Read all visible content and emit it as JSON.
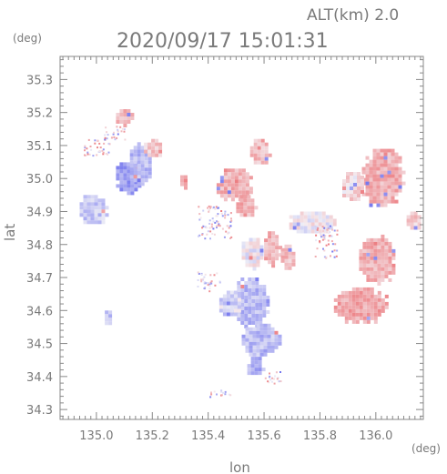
{
  "chart_data": {
    "type": "heatmap",
    "title": "2020/09/17 15:01:31",
    "altitude_label": "ALT(km) 2.0",
    "xlabel": "lon",
    "ylabel": "lat",
    "xunit": "(deg)",
    "yunit": "(deg)",
    "xlim": [
      134.87,
      136.17
    ],
    "ylim": [
      34.27,
      35.37
    ],
    "xticks": [
      135.0,
      135.2,
      135.4,
      135.6,
      135.8,
      136.0
    ],
    "xtick_labels": [
      "135.0",
      "135.2",
      "135.4",
      "135.6",
      "135.8",
      "136.0"
    ],
    "yticks": [
      34.3,
      34.4,
      34.5,
      34.6,
      34.7,
      34.8,
      34.9,
      35.0,
      35.1,
      35.2,
      35.3
    ],
    "ytick_labels": [
      "34.3",
      "34.4",
      "34.5",
      "34.6",
      "34.7",
      "34.8",
      "34.9",
      "35.0",
      "35.1",
      "35.2",
      "35.3"
    ],
    "minor_step": 0.02,
    "grid": false,
    "colors": {
      "positive": "#f08080",
      "negative": "#8080f0",
      "near_zero": "#f4e8ec"
    },
    "regions": [
      {
        "lon": [
          134.94,
          135.04
        ],
        "lat": [
          34.86,
          34.95
        ],
        "level": -0.3
      },
      {
        "lon": [
          135.03,
          135.06
        ],
        "lat": [
          34.55,
          34.6
        ],
        "level": -0.3
      },
      {
        "lon": [
          135.07,
          135.16
        ],
        "lat": [
          34.95,
          35.06
        ],
        "level": -0.7
      },
      {
        "lon": [
          135.12,
          135.2
        ],
        "lat": [
          34.98,
          35.11
        ],
        "level": -0.4
      },
      {
        "lon": [
          135.17,
          135.24
        ],
        "lat": [
          35.06,
          35.12
        ],
        "level": 0.3
      },
      {
        "lon": [
          135.07,
          135.13
        ],
        "lat": [
          35.16,
          35.21
        ],
        "level": 0.5
      },
      {
        "lon": [
          135.3,
          135.33
        ],
        "lat": [
          34.97,
          35.01
        ],
        "level": 0.4
      },
      {
        "lon": [
          135.55,
          135.62
        ],
        "lat": [
          35.04,
          35.12
        ],
        "level": 0.4
      },
      {
        "lon": [
          135.43,
          135.56
        ],
        "lat": [
          34.93,
          35.03
        ],
        "level": 0.5
      },
      {
        "lon": [
          135.5,
          135.57
        ],
        "lat": [
          34.88,
          34.95
        ],
        "level": 0.5
      },
      {
        "lon": [
          135.52,
          135.6
        ],
        "lat": [
          34.73,
          34.82
        ],
        "level": 0.0
      },
      {
        "lon": [
          135.6,
          135.66
        ],
        "lat": [
          34.74,
          34.84
        ],
        "level": 0.5
      },
      {
        "lon": [
          135.66,
          135.71
        ],
        "lat": [
          34.72,
          34.8
        ],
        "level": 0.4
      },
      {
        "lon": [
          135.69,
          135.86
        ],
        "lat": [
          34.83,
          34.9
        ],
        "level": 0.0
      },
      {
        "lon": [
          135.49,
          135.62
        ],
        "lat": [
          34.55,
          34.7
        ],
        "level": -0.4
      },
      {
        "lon": [
          135.52,
          135.66
        ],
        "lat": [
          34.46,
          34.56
        ],
        "level": -0.4
      },
      {
        "lon": [
          135.54,
          135.6
        ],
        "lat": [
          34.4,
          34.46
        ],
        "level": -0.5
      },
      {
        "lon": [
          135.44,
          135.52
        ],
        "lat": [
          34.58,
          34.66
        ],
        "level": -0.2
      },
      {
        "lon": [
          135.95,
          136.1
        ],
        "lat": [
          34.91,
          35.09
        ],
        "level": 0.5
      },
      {
        "lon": [
          135.88,
          135.96
        ],
        "lat": [
          34.93,
          35.02
        ],
        "level": 0.2
      },
      {
        "lon": [
          135.94,
          136.07
        ],
        "lat": [
          34.68,
          34.83
        ],
        "level": 0.5
      },
      {
        "lon": [
          135.85,
          136.04
        ],
        "lat": [
          34.56,
          34.67
        ],
        "level": 0.6
      },
      {
        "lon": [
          136.11,
          136.17
        ],
        "lat": [
          34.84,
          34.9
        ],
        "level": 0.3
      }
    ],
    "speckles": [
      {
        "lon": [
          134.95,
          135.05
        ],
        "lat": [
          35.07,
          35.12
        ]
      },
      {
        "lon": [
          135.02,
          135.1
        ],
        "lat": [
          35.12,
          35.16
        ]
      },
      {
        "lon": [
          135.36,
          135.48
        ],
        "lat": [
          34.82,
          34.92
        ]
      },
      {
        "lon": [
          135.78,
          135.86
        ],
        "lat": [
          34.76,
          34.86
        ]
      },
      {
        "lon": [
          135.4,
          135.48
        ],
        "lat": [
          34.34,
          34.36
        ]
      },
      {
        "lon": [
          135.6,
          135.66
        ],
        "lat": [
          34.38,
          34.42
        ]
      },
      {
        "lon": [
          135.36,
          135.44
        ],
        "lat": [
          34.66,
          34.72
        ]
      }
    ]
  }
}
